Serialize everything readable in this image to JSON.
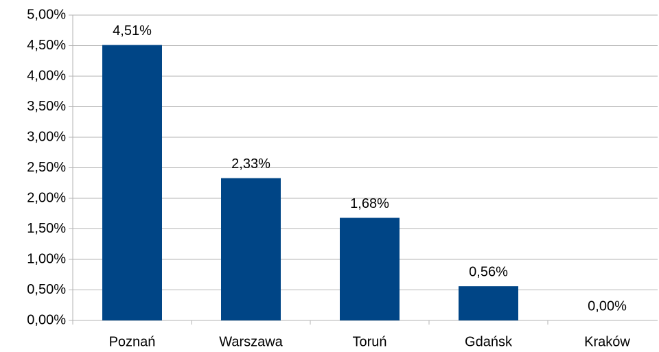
{
  "chart_data": {
    "type": "bar",
    "categories": [
      "Poznań",
      "Warszawa",
      "Toruń",
      "Gdańsk",
      "Kraków"
    ],
    "values": [
      4.51,
      2.33,
      1.68,
      0.56,
      0.0
    ],
    "value_labels": [
      "4,51%",
      "2,33%",
      "1,68%",
      "0,56%",
      "0,00%"
    ],
    "color": "#004586",
    "ylim": [
      0,
      5
    ],
    "yticks": [
      {
        "value": 0,
        "label": "0,00%"
      },
      {
        "value": 0.5,
        "label": "0,50%"
      },
      {
        "value": 1,
        "label": "1,00%"
      },
      {
        "value": 1.5,
        "label": "1,50%"
      },
      {
        "value": 2,
        "label": "2,00%"
      },
      {
        "value": 2.5,
        "label": "2,50%"
      },
      {
        "value": 3,
        "label": "3,00%"
      },
      {
        "value": 3.5,
        "label": "3,50%"
      },
      {
        "value": 4,
        "label": "4,00%"
      },
      {
        "value": 4.5,
        "label": "4,50%"
      },
      {
        "value": 5,
        "label": "5,00%"
      }
    ],
    "grid": true
  }
}
